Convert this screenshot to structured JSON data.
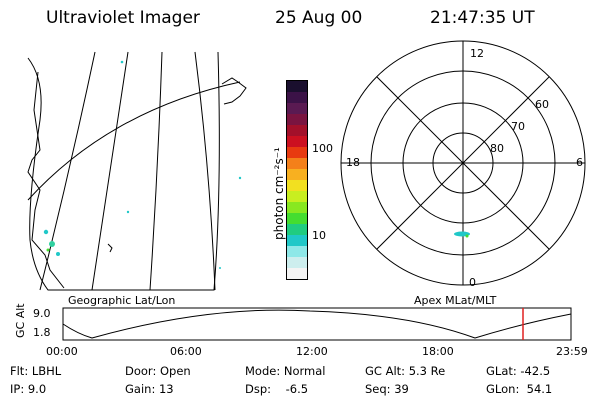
{
  "header": {
    "title": "Ultraviolet Imager",
    "date": "25 Aug 00",
    "time": "21:47:35 UT"
  },
  "colorbar": {
    "unit_label": "photon cm⁻²s⁻¹",
    "tick_labels": [
      "100",
      "10"
    ],
    "colors": [
      "#1a0f2e",
      "#3b1247",
      "#5a1a52",
      "#7a1440",
      "#a3102a",
      "#cc1020",
      "#e83a10",
      "#f4801a",
      "#f8b020",
      "#f2e020",
      "#c8ee20",
      "#88e820",
      "#44dd30",
      "#20cc80",
      "#20c8c8",
      "#8ee8e8",
      "#cdeeee",
      "#f4f4f4"
    ]
  },
  "polar": {
    "top_label": "12",
    "bottom_label": "0",
    "left_label": "18",
    "right_label": "6",
    "ring_labels": [
      "60",
      "70",
      "80"
    ]
  },
  "map_labels": {
    "left": "Geographic Lat/Lon",
    "right": "Apex MLat/MLT"
  },
  "timeline": {
    "axis_label": "GC Alt",
    "y_ticks": [
      "9.0",
      "1.8"
    ],
    "x_ticks": [
      "00:00",
      "06:00",
      "12:00",
      "18:00",
      "23:59"
    ]
  },
  "footer": {
    "col1": [
      "Flt: LBHL",
      "IP:  9.0"
    ],
    "col2": [
      "Door: Open",
      "Gain: 13"
    ],
    "col3": [
      "Mode: Normal",
      "Dsp:    -6.5"
    ],
    "col4": [
      "GC Alt: 5.3 Re",
      "Seq: 39"
    ],
    "col5": [
      "GLat: -42.5",
      "GLon:  54.1"
    ]
  }
}
